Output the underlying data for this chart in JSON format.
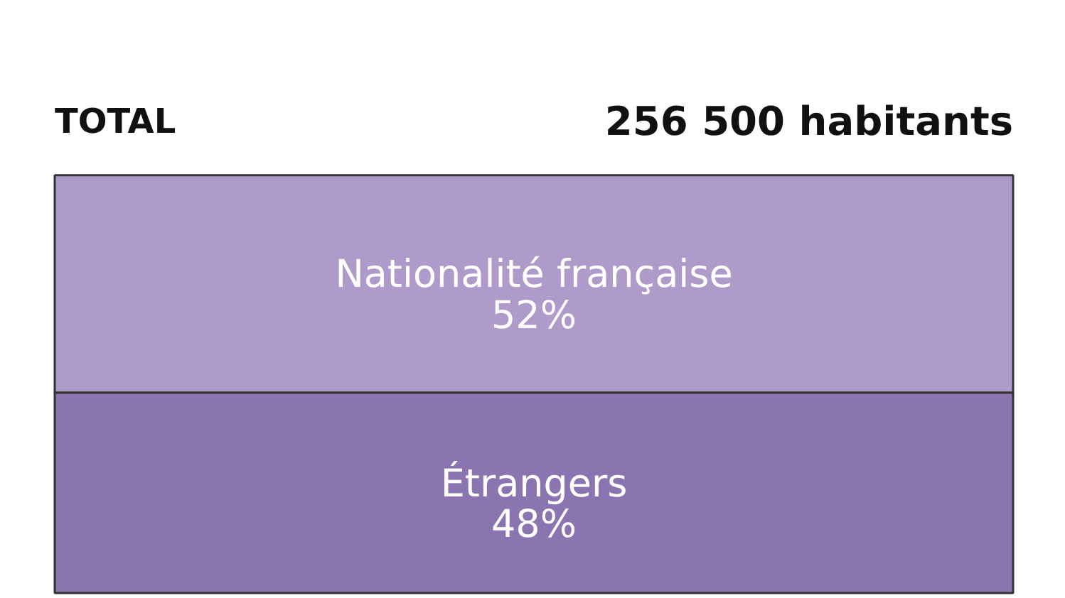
{
  "chart_data": {
    "type": "bar",
    "title": "TOTAL",
    "annotations": [
      "256 500 habitants"
    ],
    "categories": [
      null
    ],
    "stacked": true,
    "tick_labels": false,
    "series": [
      {
        "name": "Étrangers",
        "color": "#8a75b1",
        "values": [
          48
        ],
        "value_labels": [
          "48%"
        ]
      },
      {
        "name": "Nationalité française",
        "color": "#ae9bc9",
        "values": [
          52
        ],
        "value_labels": [
          "52%"
        ]
      }
    ]
  }
}
